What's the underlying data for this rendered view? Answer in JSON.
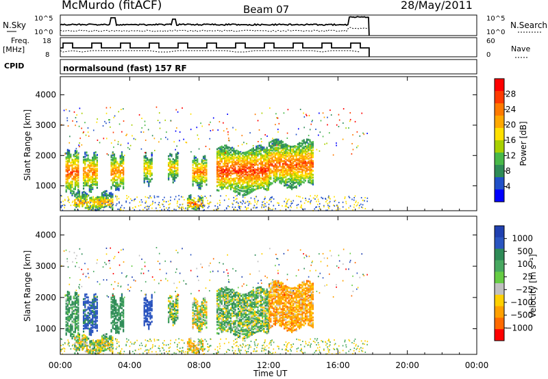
{
  "header": {
    "station": "McMurdo (fitACF)",
    "beam": "Beam 07",
    "date": "28/May/2011"
  },
  "top_panels": {
    "nsky_label": "N.Sky",
    "nsky_ticks": [
      "10^5",
      "10^0"
    ],
    "nsearch_label": "N.Search",
    "nsearch_ticks": [
      "10^5",
      "10^0"
    ],
    "freq_label_line1": "Freq.",
    "freq_label_line2": "[MHz]",
    "freq_ticks": [
      "18",
      "8"
    ],
    "nave_label": "Nave",
    "nave_ticks": [
      "60",
      "0"
    ],
    "cpid_label": "CPID",
    "cpid_value": "normalsound (fast) 157 RF"
  },
  "axes": {
    "ylabel": "Slant Range [km]",
    "yticks": [
      "4000",
      "3000",
      "2000",
      "1000"
    ],
    "xlabel": "Time UT",
    "xticks": [
      "00:00",
      "04:00",
      "08:00",
      "12:00",
      "16:00",
      "20:00",
      "00:00"
    ]
  },
  "power_colorbar": {
    "label": "Power [dB]",
    "ticks": [
      "28",
      "24",
      "20",
      "16",
      "12",
      "8",
      "4"
    ],
    "colors": [
      "#ff0000",
      "#ff3a00",
      "#ff7a00",
      "#ffa800",
      "#ffe000",
      "#a8d000",
      "#48b848",
      "#2e8b57",
      "#2050c8",
      "#0000ff"
    ]
  },
  "velocity_colorbar": {
    "label": "Velocity [m s⁻¹]",
    "ticks": [
      "1000",
      "500",
      "100",
      "25",
      "−25",
      "−100",
      "−500",
      "−1000"
    ],
    "colors": [
      "#2040b0",
      "#2a55c0",
      "#2e8b57",
      "#48a860",
      "#66cc44",
      "#c0c0c0",
      "#ffd000",
      "#ffa000",
      "#ff6a00",
      "#ff0000"
    ]
  },
  "chart_data": {
    "type": "heatmap",
    "title": "McMurdo (fitACF) Beam 07 28/May/2011",
    "xlabel": "Time UT",
    "ylabel": "Slant Range [km]",
    "xlim_hours": [
      0,
      24
    ],
    "ylim_km": [
      180,
      4600
    ],
    "grid": false,
    "panels": [
      "Power [dB]",
      "Velocity [m s-1]"
    ],
    "data_end_hour": 17.8,
    "echo_regions": [
      {
        "t_start": 0.3,
        "t_end": 1.0,
        "r_min": 800,
        "r_max": 2100,
        "power_db": 26,
        "velocity": 200
      },
      {
        "t_start": 1.3,
        "t_end": 2.1,
        "r_min": 900,
        "r_max": 2000,
        "power_db": 24,
        "velocity": 600
      },
      {
        "t_start": 2.9,
        "t_end": 3.6,
        "r_min": 900,
        "r_max": 2000,
        "power_db": 24,
        "velocity": 300
      },
      {
        "t_start": 4.8,
        "t_end": 5.3,
        "r_min": 1100,
        "r_max": 2000,
        "power_db": 20,
        "velocity": 700
      },
      {
        "t_start": 6.2,
        "t_end": 6.8,
        "r_min": 1200,
        "r_max": 2000,
        "power_db": 20,
        "velocity": 100
      },
      {
        "t_start": 7.6,
        "t_end": 8.4,
        "r_min": 1000,
        "r_max": 1900,
        "power_db": 24,
        "velocity": 0
      },
      {
        "t_start": 7.3,
        "t_end": 8.2,
        "r_min": 200,
        "r_max": 600,
        "power_db": 26,
        "velocity": -100
      },
      {
        "t_start": 9.0,
        "t_end": 12.0,
        "r_min": 800,
        "r_max": 2200,
        "power_db": 28,
        "velocity": 100
      },
      {
        "t_start": 12.0,
        "t_end": 14.6,
        "r_min": 1000,
        "r_max": 2400,
        "power_db": 26,
        "velocity": -200
      },
      {
        "t_start": 0.8,
        "t_end": 3.0,
        "r_min": 200,
        "r_max": 700,
        "power_db": 22,
        "velocity": 50
      }
    ]
  }
}
